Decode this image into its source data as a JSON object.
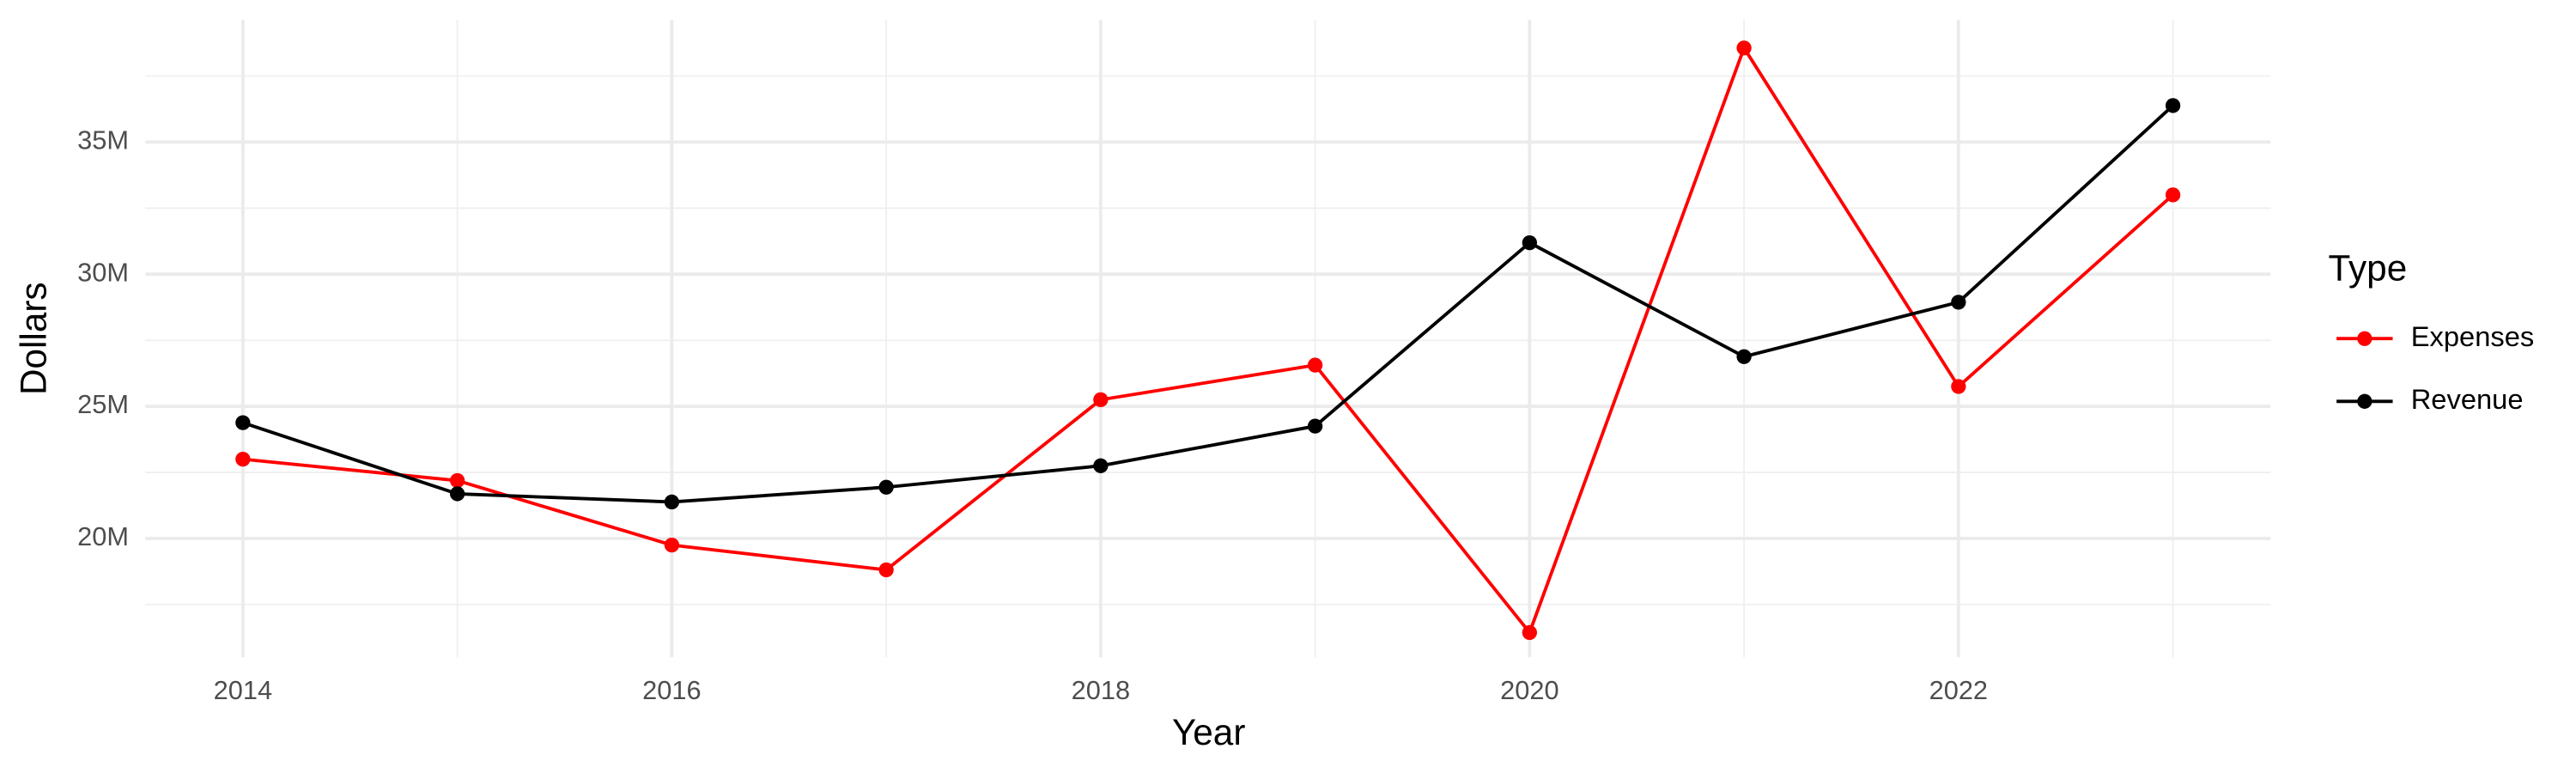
{
  "chart_data": {
    "type": "line",
    "x_label": "Year",
    "y_label": "Dollars",
    "x": [
      2014,
      2015,
      2016,
      2017,
      2018,
      2019,
      2020,
      2021,
      2022,
      2023
    ],
    "series": [
      {
        "name": "Expenses",
        "color": "#ff0000",
        "values": [
          23000000,
          22190000,
          19750000,
          18810000,
          25250000,
          26560000,
          16440000,
          38560000,
          25750000,
          33000000
        ]
      },
      {
        "name": "Revenue",
        "color": "#000000",
        "values": [
          24380000,
          21690000,
          21380000,
          21940000,
          22750000,
          24250000,
          31190000,
          26880000,
          28940000,
          36380000
        ]
      }
    ],
    "xlim": [
      2013.545,
      2023.455
    ],
    "ylim": [
      15500000,
      39625000
    ],
    "xticks": [
      2014,
      2016,
      2018,
      2020,
      2022
    ],
    "yticks": [
      {
        "value": 20000000,
        "label": "20M"
      },
      {
        "value": 25000000,
        "label": "25M"
      },
      {
        "value": 30000000,
        "label": "30M"
      },
      {
        "value": 35000000,
        "label": "35M"
      }
    ],
    "x_minor_ticks": [
      2015,
      2017,
      2019,
      2021,
      2023
    ],
    "y_minor_ticks": [
      17500000,
      22500000,
      27500000,
      32500000,
      37500000
    ],
    "grid": true,
    "legend_title": "Type",
    "legend_position": "right"
  }
}
